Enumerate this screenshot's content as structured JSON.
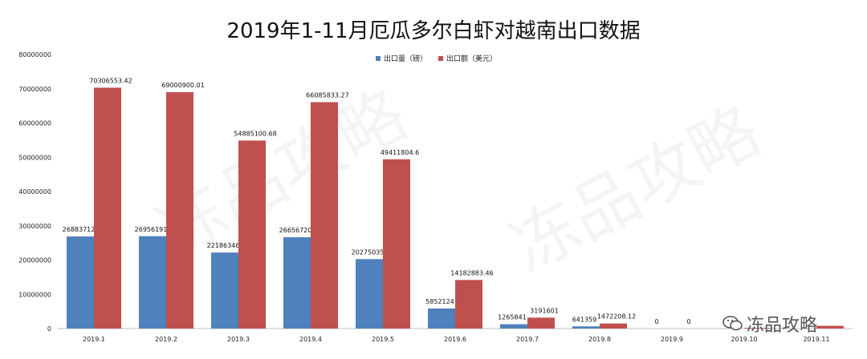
{
  "chart_data": {
    "type": "bar",
    "title": "2019年1-11月厄瓜多尔白虾对越南出口数据",
    "categories": [
      "2019.1",
      "2019.2",
      "2019.3",
      "2019.4",
      "2019.5",
      "2019.6",
      "2019.7",
      "2019.8",
      "2019.9",
      "2019.10",
      "2019.11"
    ],
    "series": [
      {
        "name": "出口量（磅）",
        "color": "#4F81BD",
        "values": [
          26883712,
          26956191,
          22186346,
          26656720,
          20275035,
          5852124,
          1265841,
          641359,
          0,
          null,
          null
        ],
        "labels": [
          "26883712",
          "26956191",
          "22186346",
          "26656720",
          "20275035",
          "5852124",
          "1265841",
          "641359",
          "0",
          "",
          ""
        ]
      },
      {
        "name": "出口额（美元）",
        "color": "#C0504D",
        "values": [
          70306553.42,
          69000900.01,
          54885100.68,
          66085833.27,
          49411804.6,
          14182883.46,
          3191601,
          1472208.12,
          0,
          200000,
          800000
        ],
        "labels": [
          "70306553.42",
          "69000900.01",
          "54885100.68",
          "66085833.27",
          "49411804.6",
          "14182883.46",
          "3191601",
          "1472208.12",
          "0",
          "",
          ""
        ]
      }
    ],
    "y_ticks": [
      "0",
      "10000000",
      "20000000",
      "30000000",
      "40000000",
      "50000000",
      "60000000",
      "70000000",
      "80000000"
    ],
    "ylim": [
      0,
      80000000
    ],
    "legend_position": "top-center",
    "grid": false
  },
  "watermark_text": "冻品攻略",
  "badge_text": "冻品攻略",
  "badge_icon": "wechat-icon"
}
